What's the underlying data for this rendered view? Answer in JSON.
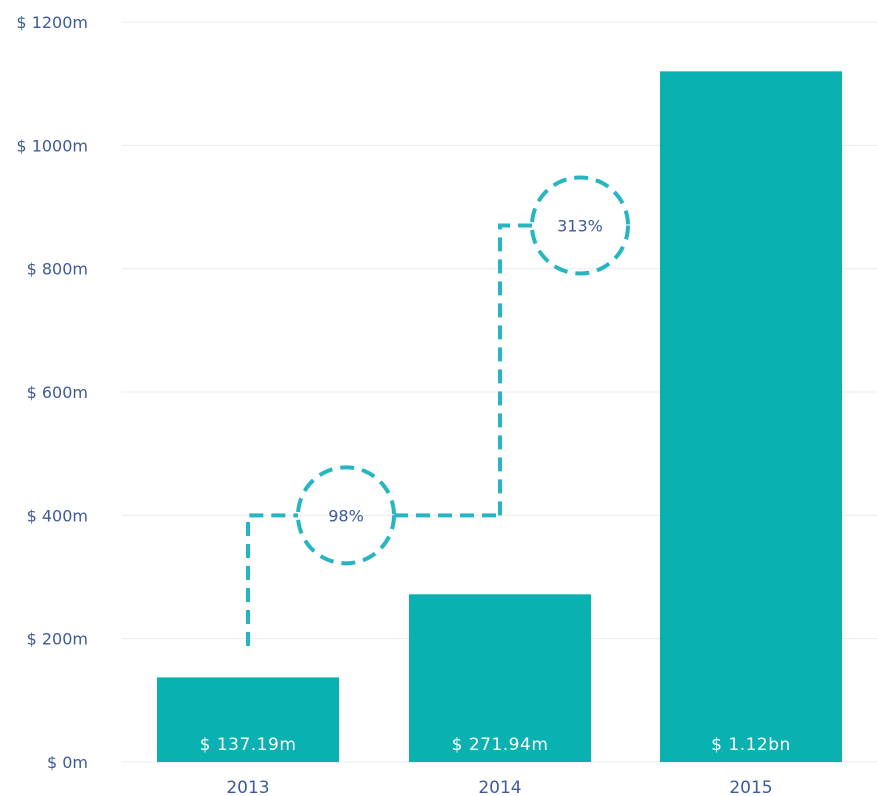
{
  "chart_data": {
    "type": "bar",
    "title": "",
    "xlabel": "",
    "ylabel": "",
    "categories": [
      "2013",
      "2014",
      "2015"
    ],
    "values": [
      137.19,
      271.94,
      1120
    ],
    "value_labels": [
      "$ 137.19m",
      "$ 271.94m",
      "$ 1.12bn"
    ],
    "ylim": [
      0,
      1200
    ],
    "yticks": [
      0,
      200,
      400,
      600,
      800,
      1000,
      1200
    ],
    "ytick_labels": [
      "$ 0m",
      "$ 200m",
      "$ 400m",
      "$ 600m",
      "$ 800m",
      "$ 1000m",
      "$ 1200m"
    ],
    "grid": true,
    "annotations": [
      {
        "text": "98%",
        "from": "2013",
        "to": "2014",
        "connector_level": 400
      },
      {
        "text": "313%",
        "from": "2014",
        "to": "2015",
        "connector_level": 870
      }
    ]
  },
  "colors": {
    "bar": "#09b1b1",
    "connector": "#26b6c2",
    "axis_text": "#3d5b9c",
    "grid": "#e9ecf0",
    "bar_text": "#ffffff"
  }
}
